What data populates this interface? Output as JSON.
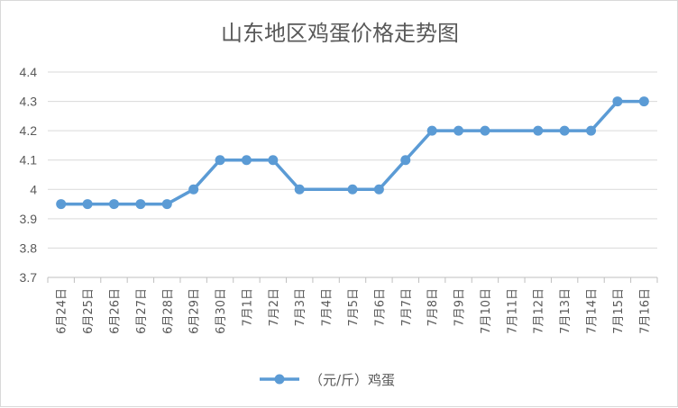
{
  "chart_data": {
    "type": "line",
    "title": "山东地区鸡蛋价格走势图",
    "xlabel": "",
    "ylabel": "",
    "ylim": [
      3.7,
      4.4
    ],
    "ytick_step": 0.1,
    "ytick_labels": [
      "3.7",
      "3.8",
      "3.9",
      "4",
      "4.1",
      "4.2",
      "4.3",
      "4.4"
    ],
    "grid": true,
    "legend_position": "bottom",
    "categories": [
      "6月24日",
      "6月25日",
      "6月26日",
      "6月27日",
      "6月28日",
      "6月29日",
      "6月30日",
      "7月1日",
      "7月2日",
      "7月3日",
      "7月4日",
      "7月5日",
      "7月6日",
      "7月7日",
      "7月8日",
      "7月9日",
      "7月10日",
      "7月11日",
      "7月12日",
      "7月13日",
      "7月14日",
      "7月15日",
      "7月16日"
    ],
    "series": [
      {
        "name": "（元/斤）鸡蛋",
        "color": "#5b9bd5",
        "values": [
          3.95,
          3.95,
          3.95,
          3.95,
          3.95,
          4.0,
          4.1,
          4.1,
          4.1,
          4.0,
          null,
          4.0,
          4.0,
          4.1,
          4.2,
          4.2,
          4.2,
          null,
          4.2,
          4.2,
          4.2,
          4.3,
          4.3
        ]
      }
    ]
  },
  "colors": {
    "grid": "#d9d9d9",
    "axis": "#bfbfbf",
    "text": "#595959"
  }
}
